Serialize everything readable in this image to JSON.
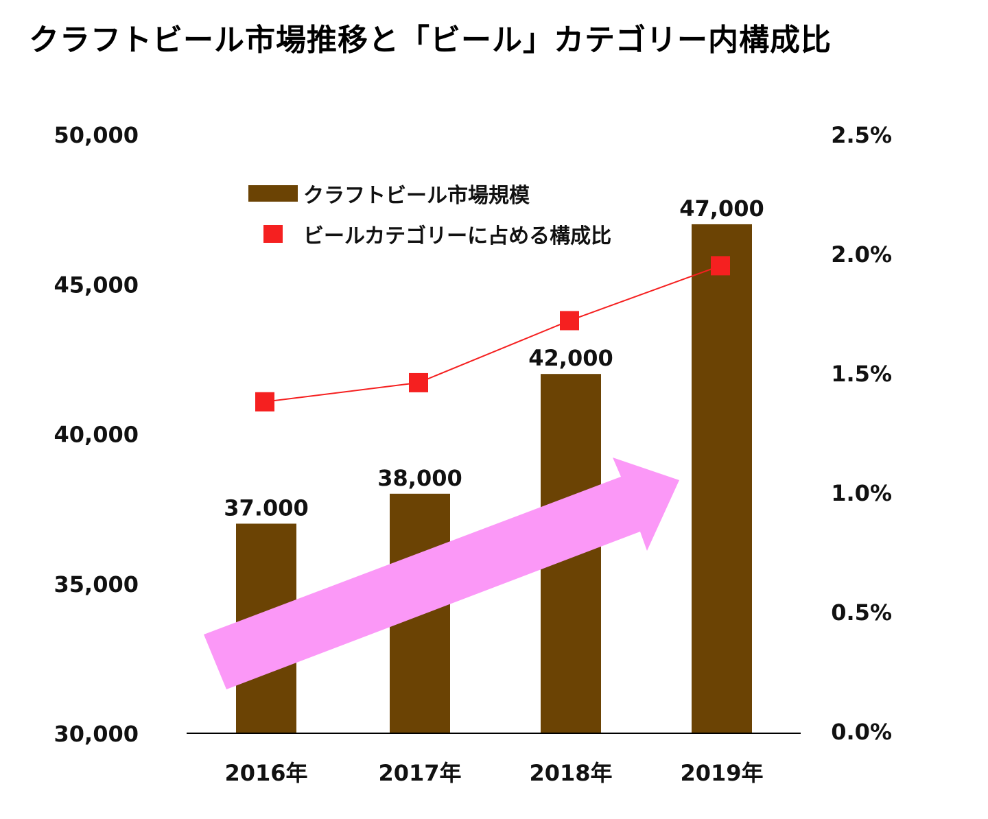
{
  "chart_data": {
    "type": "bar+line",
    "title": "クラフトビール市場推移と「ビール」カテゴリー内構成比",
    "categories": [
      "2016年",
      "2017年",
      "2018年",
      "2019年"
    ],
    "series": [
      {
        "name": "クラフトビール市場規模",
        "type": "bar",
        "axis": "left",
        "values": [
          37000,
          38000,
          42000,
          47000
        ],
        "labels": [
          "37.000",
          "38,000",
          "42,000",
          "47,000"
        ],
        "color": "#6b4304"
      },
      {
        "name": "ビールカテゴリーに占める構成比",
        "type": "line",
        "axis": "right",
        "values": [
          1.38,
          1.46,
          1.72,
          1.95
        ],
        "unit": "%",
        "color": "#f52020"
      }
    ],
    "left_axis": {
      "ylim": [
        30000,
        50000
      ],
      "ticks": [
        "30,000",
        "35,000",
        "40,000",
        "45,000",
        "50,000"
      ],
      "tick_values": [
        30000,
        35000,
        40000,
        45000,
        50000
      ]
    },
    "right_axis": {
      "ylim": [
        0,
        2.5
      ],
      "ticks": [
        "0.0%",
        "0.5%",
        "1.0%",
        "1.5%",
        "2.0%",
        "2.5%"
      ],
      "tick_values": [
        0,
        0.5,
        1.0,
        1.5,
        2.0,
        2.5
      ]
    },
    "legend": "top-center",
    "grid": false,
    "annotation": "pink upward arrow indicating growth trend",
    "arrow_color": "#fb98f7"
  }
}
